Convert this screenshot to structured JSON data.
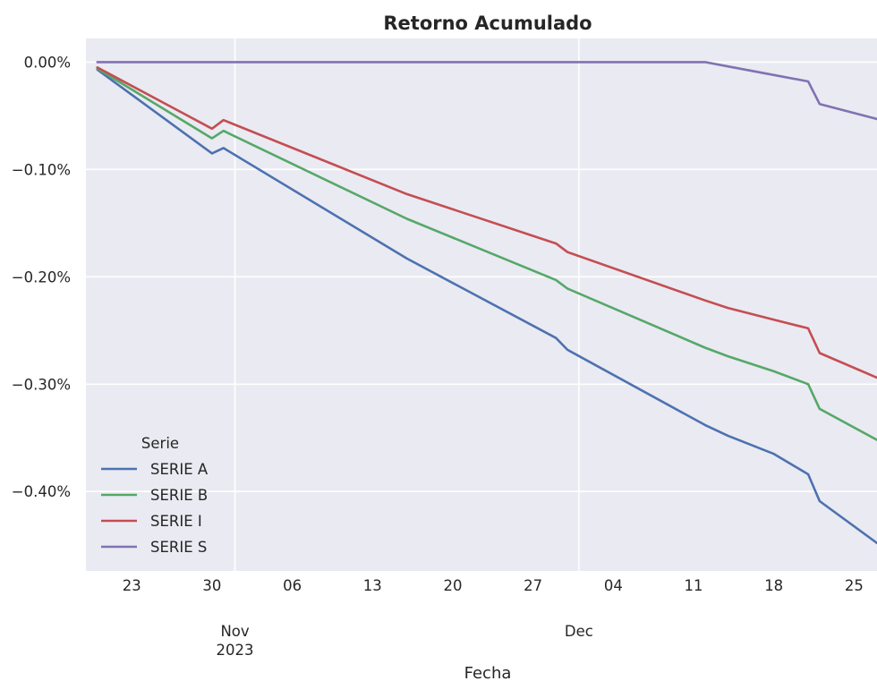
{
  "chart_data": {
    "type": "line",
    "title": "Retorno Acumulado",
    "xlabel": "Fecha",
    "ylabel": "",
    "x": [
      "2023-10-20",
      "2023-10-30",
      "2023-10-31",
      "2023-11-16",
      "2023-11-29",
      "2023-11-30",
      "2023-12-12",
      "2023-12-14",
      "2023-12-18",
      "2023-12-21",
      "2023-12-22",
      "2023-12-27"
    ],
    "x_ticks": [
      {
        "date": "2023-10-23",
        "label": "23"
      },
      {
        "date": "2023-10-30",
        "label": "30"
      },
      {
        "date": "2023-11-06",
        "label": "06"
      },
      {
        "date": "2023-11-13",
        "label": "13"
      },
      {
        "date": "2023-11-20",
        "label": "20"
      },
      {
        "date": "2023-11-27",
        "label": "27"
      },
      {
        "date": "2023-12-04",
        "label": "04"
      },
      {
        "date": "2023-12-11",
        "label": "11"
      },
      {
        "date": "2023-12-18",
        "label": "18"
      },
      {
        "date": "2023-12-25",
        "label": "25"
      }
    ],
    "x_major_ticks": [
      {
        "date": "2023-11-01",
        "label": "Nov\n2023"
      },
      {
        "date": "2023-12-01",
        "label": "Dec"
      }
    ],
    "y_ticks": [
      0.0,
      -0.1,
      -0.2,
      -0.3,
      -0.4
    ],
    "y_tick_labels": [
      "0.00%",
      "−0.10%",
      "−0.20%",
      "−0.30%",
      "−0.40%"
    ],
    "xlim": [
      "2023-10-19",
      "2023-12-27"
    ],
    "ylim": [
      -0.474,
      0.022
    ],
    "grid": true,
    "legend_title": "Serie",
    "legend_position": "lower-left",
    "series": [
      {
        "name": "SERIE A",
        "color": "#4c72b0",
        "values": [
          -0.007,
          -0.085,
          -0.08,
          -0.183,
          -0.257,
          -0.268,
          -0.338,
          -0.348,
          -0.365,
          -0.384,
          -0.409,
          -0.448
        ]
      },
      {
        "name": "SERIE B",
        "color": "#55a868",
        "values": [
          -0.006,
          -0.071,
          -0.064,
          -0.146,
          -0.203,
          -0.211,
          -0.266,
          -0.274,
          -0.288,
          -0.3,
          -0.323,
          -0.352
        ]
      },
      {
        "name": "SERIE I",
        "color": "#c44e52",
        "values": [
          -0.005,
          -0.062,
          -0.054,
          -0.123,
          -0.169,
          -0.177,
          -0.222,
          -0.229,
          -0.24,
          -0.248,
          -0.271,
          -0.294
        ]
      },
      {
        "name": "SERIE S",
        "color": "#8172b3",
        "values": [
          0.0,
          0.0,
          0.0,
          0.0,
          0.0,
          0.0,
          0.0,
          -0.004,
          -0.012,
          -0.018,
          -0.039,
          -0.053
        ]
      }
    ]
  }
}
